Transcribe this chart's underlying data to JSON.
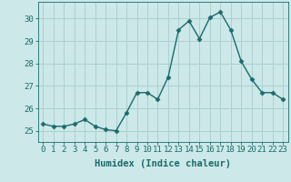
{
  "x": [
    0,
    1,
    2,
    3,
    4,
    5,
    6,
    7,
    8,
    9,
    10,
    11,
    12,
    13,
    14,
    15,
    16,
    17,
    18,
    19,
    20,
    21,
    22,
    23
  ],
  "y": [
    25.3,
    25.2,
    25.2,
    25.3,
    25.5,
    25.2,
    25.05,
    25.0,
    25.8,
    26.7,
    26.7,
    26.4,
    27.4,
    29.5,
    29.9,
    29.1,
    30.05,
    30.3,
    29.5,
    28.1,
    27.3,
    26.7,
    26.7,
    26.4
  ],
  "line_color": "#1a6b6b",
  "marker": "D",
  "marker_size": 2.5,
  "bg_color": "#cce8e8",
  "grid_color": "#aed0d0",
  "xlabel": "Humidex (Indice chaleur)",
  "ylim": [
    24.5,
    30.75
  ],
  "xlim": [
    -0.5,
    23.5
  ],
  "yticks": [
    25,
    26,
    27,
    28,
    29,
    30
  ],
  "xticks": [
    0,
    1,
    2,
    3,
    4,
    5,
    6,
    7,
    8,
    9,
    10,
    11,
    12,
    13,
    14,
    15,
    16,
    17,
    18,
    19,
    20,
    21,
    22,
    23
  ],
  "xtick_labels": [
    "0",
    "1",
    "2",
    "3",
    "4",
    "5",
    "6",
    "7",
    "8",
    "9",
    "10",
    "11",
    "12",
    "13",
    "14",
    "15",
    "16",
    "17",
    "18",
    "19",
    "20",
    "21",
    "22",
    "23"
  ],
  "xlabel_fontsize": 7.5,
  "tick_fontsize": 6.5,
  "line_width": 1.0
}
